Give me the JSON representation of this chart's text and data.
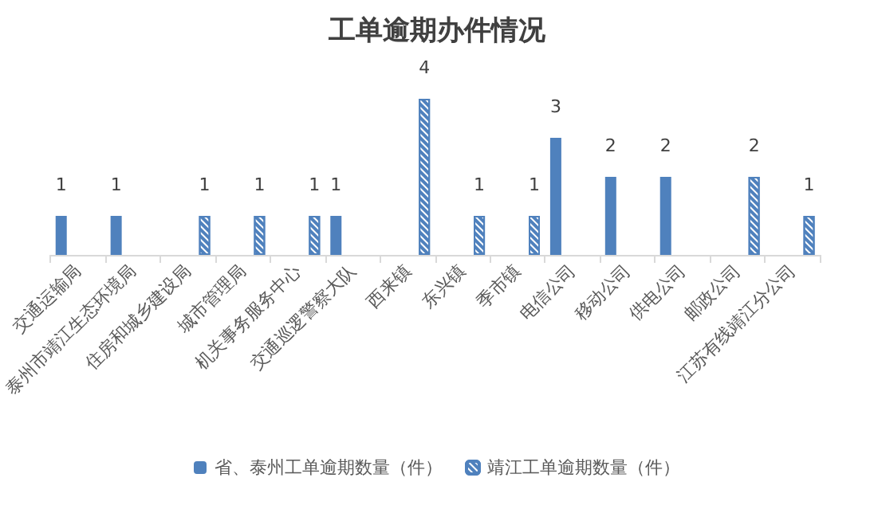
{
  "chart_data": {
    "type": "bar",
    "title": "工单逾期办件情况",
    "categories": [
      "交通运输局",
      "泰州市靖江生态环境局",
      "住房和城乡建设局",
      "城市管理局",
      "机关事务服务中心",
      "交通巡逻警察大队",
      "西来镇",
      "东兴镇",
      "季市镇",
      "电信公司",
      "移动公司",
      "供电公司",
      "邮政公司",
      "江苏有线靖江分公司"
    ],
    "series": [
      {
        "name": "省、泰州工单逾期数量（件）",
        "color": "#4f81bd",
        "values": [
          1,
          1,
          null,
          null,
          null,
          1,
          null,
          null,
          null,
          3,
          2,
          2,
          null,
          null
        ]
      },
      {
        "name": "靖江工单逾期数量（件）",
        "color": "#4f81bd",
        "values": [
          null,
          null,
          1,
          1,
          1,
          null,
          4,
          1,
          1,
          null,
          null,
          null,
          2,
          1
        ]
      }
    ],
    "data_labels": true,
    "legend": "bottom"
  }
}
